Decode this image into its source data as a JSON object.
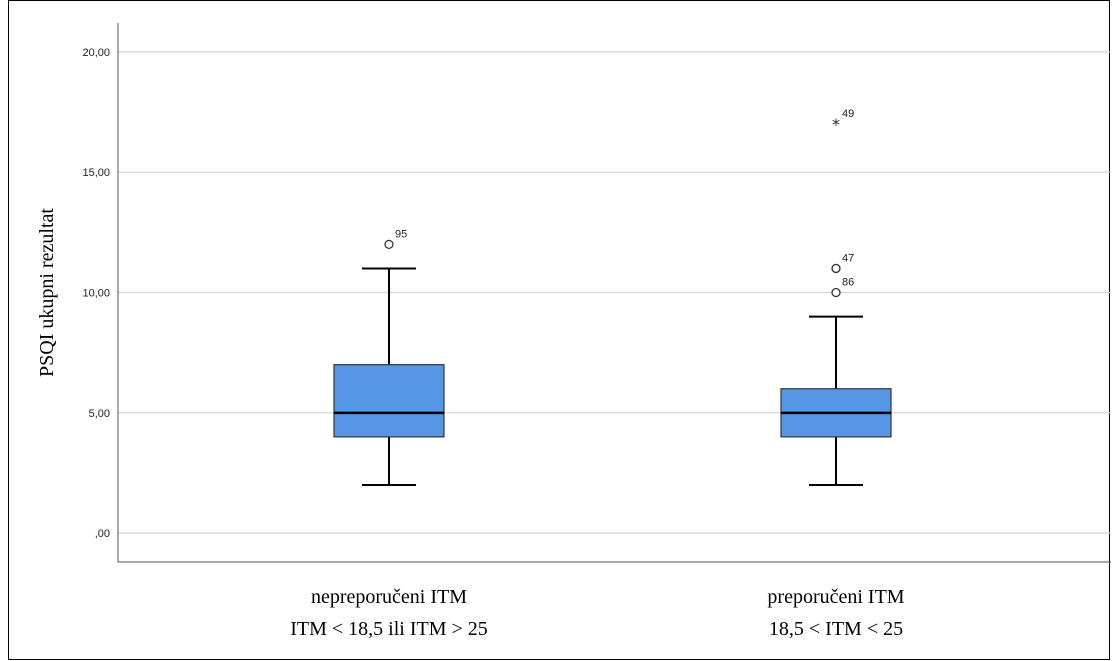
{
  "chart_data": {
    "type": "box",
    "ylabel": "PSQI ukupni rezultat",
    "ylim": [
      -1.2,
      21.2
    ],
    "yticks": [
      0,
      5,
      10,
      15,
      20
    ],
    "ytick_labels": [
      ",00",
      "5,00",
      "10,00",
      "15,00",
      "20,00"
    ],
    "grid": true,
    "box_color": "#5597e6",
    "categories": [
      {
        "label_lines": [
          "nepreporučeni ITM",
          "ITM < 18,5  ili  ITM > 25"
        ],
        "min": 2,
        "q1": 4,
        "median": 5,
        "q3": 7,
        "max": 11,
        "outliers": [
          {
            "value": 12,
            "label": "95",
            "marker": "circle"
          }
        ]
      },
      {
        "label_lines": [
          "preporučeni ITM",
          "18,5 < ITM < 25"
        ],
        "min": 2,
        "q1": 4,
        "median": 5,
        "q3": 6,
        "max": 9,
        "outliers": [
          {
            "value": 17,
            "label": "49",
            "marker": "star"
          },
          {
            "value": 11,
            "label": "47",
            "marker": "circle"
          },
          {
            "value": 10,
            "label": "86",
            "marker": "circle"
          }
        ]
      }
    ]
  }
}
